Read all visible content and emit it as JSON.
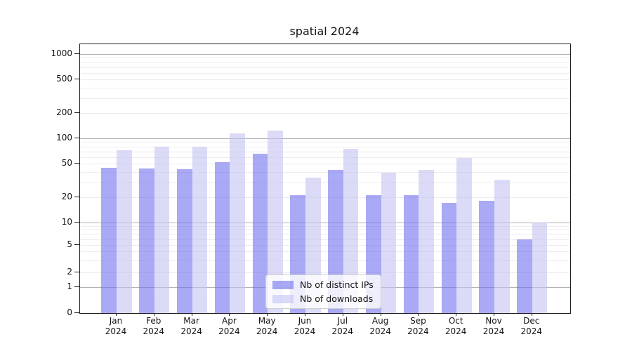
{
  "title": "spatial 2024",
  "chart_data": {
    "type": "bar",
    "title": "spatial 2024",
    "categories": [
      "Jan 2024",
      "Feb 2024",
      "Mar 2024",
      "Apr 2024",
      "May 2024",
      "Jun 2024",
      "Jul 2024",
      "Aug 2024",
      "Sep 2024",
      "Oct 2024",
      "Nov 2024",
      "Dec 2024"
    ],
    "series": [
      {
        "name": "Nb of distinct IPs",
        "color_hex": "#a9a9f5",
        "color_rgba": "rgba(112,112,238,0.6)",
        "values": [
          45,
          44,
          43,
          52,
          65,
          21,
          42,
          21,
          21,
          17,
          18,
          6
        ]
      },
      {
        "name": "Nb of downloads",
        "color_hex": "#dbdbf8",
        "color_rgba": "rgba(195,195,243,0.6)",
        "values": [
          72,
          80,
          79,
          115,
          123,
          34,
          75,
          39,
          42,
          58,
          32,
          10
        ]
      }
    ],
    "xlabel": "",
    "ylabel": "",
    "yscale": "symlog",
    "yticks": [
      0,
      1,
      2,
      5,
      10,
      20,
      50,
      100,
      200,
      500,
      1000
    ],
    "ylim": [
      0,
      1300
    ],
    "grid": "on",
    "legend_position": "lower center inside"
  },
  "legend": {
    "items": [
      {
        "label": "Nb of distinct IPs"
      },
      {
        "label": "Nb of downloads"
      }
    ]
  },
  "colors": {
    "distinct_ips": "#a9a9f5",
    "downloads": "#dbdbf8",
    "grid_major": "#b2b2b2",
    "grid_minor": "#ececec",
    "axis": "#1f1f1f",
    "background": "#ffffff"
  }
}
